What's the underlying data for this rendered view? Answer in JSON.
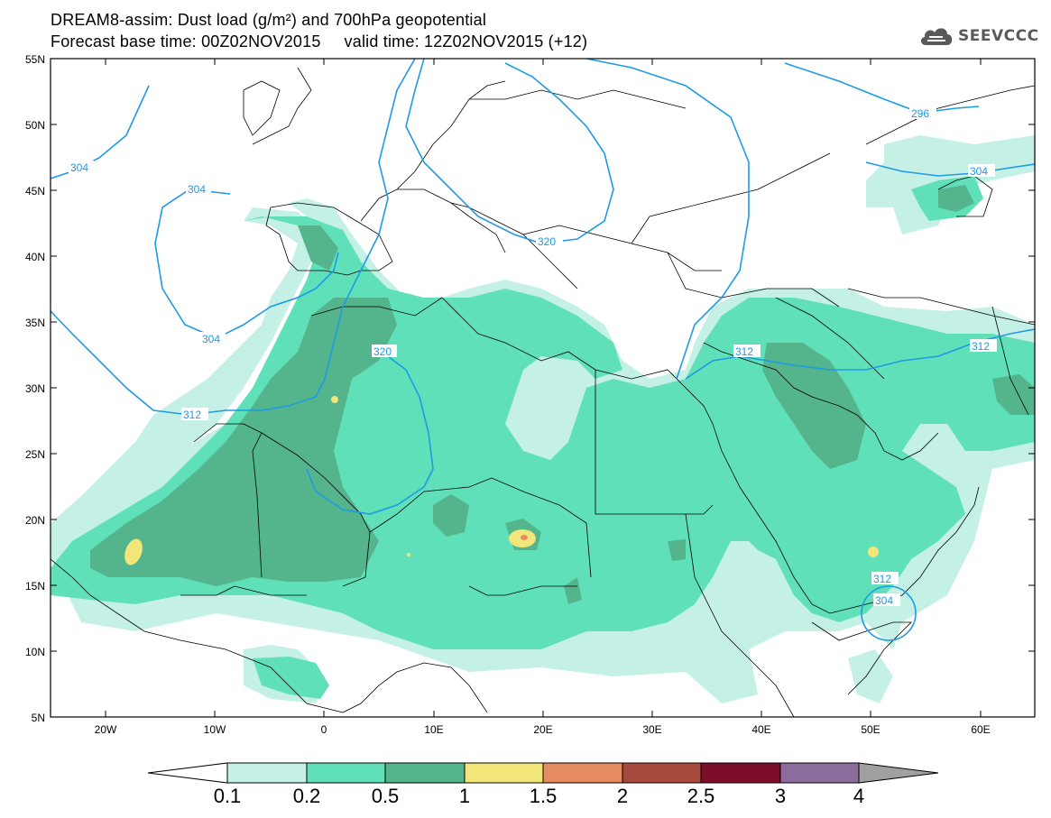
{
  "header": {
    "title_line1": "DREAM8-assim: Dust load (g/m²) and 700hPa geopotential",
    "title_line2": "Forecast base time: 00Z02NOV2015     valid time: 12Z02NOV2015 (+12)"
  },
  "logo": {
    "text": "SEEVCCC",
    "icon": "cloud-logo-icon"
  },
  "map": {
    "lon_range": [
      -25,
      65
    ],
    "lat_range": [
      5,
      55
    ],
    "lat_ticks": [
      "55N",
      "50N",
      "45N",
      "40N",
      "35N",
      "30N",
      "25N",
      "20N",
      "15N",
      "10N",
      "5N"
    ],
    "lon_ticks": [
      "20W",
      "10W",
      "0",
      "10E",
      "20E",
      "30E",
      "40E",
      "50E",
      "60E"
    ],
    "contour_labels": [
      "304",
      "304",
      "304",
      "320",
      "320",
      "312",
      "312",
      "312",
      "312",
      "304",
      "296",
      "304"
    ]
  },
  "colorbar": {
    "labels": [
      "0.1",
      "0.2",
      "0.5",
      "1",
      "1.5",
      "2",
      "2.5",
      "3",
      "4"
    ],
    "colors": [
      "#c4f0e6",
      "#5fe0b8",
      "#54b48c",
      "#f2e67a",
      "#e68c60",
      "#a64b3c",
      "#7c0e2c",
      "#8c6c9c",
      "#a0a0a0"
    ]
  },
  "styles": {
    "contour_color": "#1e9ae6",
    "border_color": "#000000",
    "dust_light": "#c4f0e6",
    "dust_mid": "#5fe0b8",
    "dust_dark": "#54b48c",
    "dust_yellow": "#f2e67a",
    "dust_orange": "#e68c60"
  }
}
